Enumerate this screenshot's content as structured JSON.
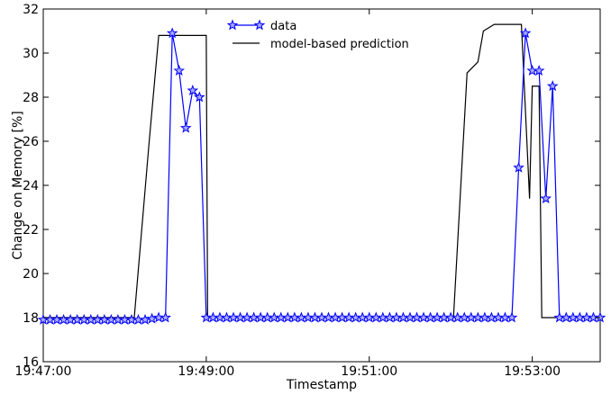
{
  "chart_data": {
    "type": "line",
    "title": "",
    "xlabel": "Timestamp",
    "ylabel": "Change on Memory [%]",
    "xlim": [
      "19:47:00",
      "19:53:50"
    ],
    "ylim": [
      16,
      32
    ],
    "x_ticks": [
      "19:47:00",
      "19:49:00",
      "19:51:00",
      "19:53:00"
    ],
    "y_ticks": [
      16,
      18,
      20,
      22,
      24,
      26,
      28,
      30,
      32
    ],
    "grid": false,
    "legend": {
      "position": "top-center",
      "entries": [
        "data",
        "model-based prediction"
      ]
    },
    "series": [
      {
        "name": "data",
        "color": "#0000ff",
        "marker": "star",
        "marker_fill": "#aaaaff",
        "x": [
          "19:47:00",
          "19:47:05",
          "19:47:10",
          "19:47:15",
          "19:47:20",
          "19:47:25",
          "19:47:30",
          "19:47:35",
          "19:47:40",
          "19:47:45",
          "19:47:50",
          "19:47:55",
          "19:48:00",
          "19:48:05",
          "19:48:10",
          "19:48:15",
          "19:48:20",
          "19:48:25",
          "19:48:30",
          "19:48:35",
          "19:48:40",
          "19:48:45",
          "19:48:50",
          "19:48:55",
          "19:49:00",
          "19:49:05",
          "19:49:10",
          "19:49:15",
          "19:49:20",
          "19:49:25",
          "19:49:30",
          "19:49:35",
          "19:49:40",
          "19:49:45",
          "19:49:50",
          "19:49:55",
          "19:50:00",
          "19:50:05",
          "19:50:10",
          "19:50:15",
          "19:50:20",
          "19:50:25",
          "19:50:30",
          "19:50:35",
          "19:50:40",
          "19:50:45",
          "19:50:50",
          "19:50:55",
          "19:51:00",
          "19:51:05",
          "19:51:10",
          "19:51:15",
          "19:51:20",
          "19:51:25",
          "19:51:30",
          "19:51:35",
          "19:51:40",
          "19:51:45",
          "19:51:50",
          "19:51:55",
          "19:52:00",
          "19:52:05",
          "19:52:10",
          "19:52:15",
          "19:52:20",
          "19:52:25",
          "19:52:30",
          "19:52:35",
          "19:52:40",
          "19:52:45",
          "19:52:50",
          "19:52:55",
          "19:53:00",
          "19:53:05",
          "19:53:10",
          "19:53:15",
          "19:53:20",
          "19:53:25",
          "19:53:30",
          "19:53:35",
          "19:53:40",
          "19:53:45",
          "19:53:50"
        ],
        "values": [
          17.9,
          17.9,
          17.9,
          17.9,
          17.9,
          17.9,
          17.9,
          17.9,
          17.9,
          17.9,
          17.9,
          17.9,
          17.9,
          17.9,
          17.9,
          17.9,
          17.95,
          18.0,
          18.0,
          30.9,
          29.2,
          26.6,
          28.3,
          28.0,
          18.0,
          18.0,
          18.0,
          18.0,
          18.0,
          18.0,
          18.0,
          18.0,
          18.0,
          18.0,
          18.0,
          18.0,
          18.0,
          18.0,
          18.0,
          18.0,
          18.0,
          18.0,
          18.0,
          18.0,
          18.0,
          18.0,
          18.0,
          18.0,
          18.0,
          18.0,
          18.0,
          18.0,
          18.0,
          18.0,
          18.0,
          18.0,
          18.0,
          18.0,
          18.0,
          18.0,
          18.0,
          18.0,
          18.0,
          18.0,
          18.0,
          18.0,
          18.0,
          18.0,
          18.0,
          18.0,
          24.8,
          30.9,
          29.2,
          29.2,
          23.4,
          28.5,
          18.0,
          18.0,
          18.0,
          18.0,
          18.0,
          18.0,
          18.0
        ]
      },
      {
        "name": "model-based prediction",
        "color": "#000000",
        "marker": "none",
        "x": [
          "19:47:00",
          "19:48:00",
          "19:48:07",
          "19:48:18",
          "19:48:25",
          "19:48:52",
          "19:48:55",
          "19:49:00",
          "19:49:01",
          "19:51:58",
          "19:52:02",
          "19:52:12",
          "19:52:20",
          "19:52:24",
          "19:52:32",
          "19:52:52",
          "19:52:58",
          "19:53:00",
          "19:53:02",
          "19:53:05",
          "19:53:07",
          "19:53:10",
          "19:53:50"
        ],
        "values": [
          18.0,
          18.0,
          18.0,
          26.0,
          30.8,
          30.8,
          30.8,
          30.8,
          18.0,
          18.0,
          18.0,
          29.1,
          29.6,
          31.0,
          31.3,
          31.3,
          23.4,
          28.5,
          28.5,
          28.5,
          18.0,
          18.0,
          18.0
        ]
      }
    ]
  }
}
